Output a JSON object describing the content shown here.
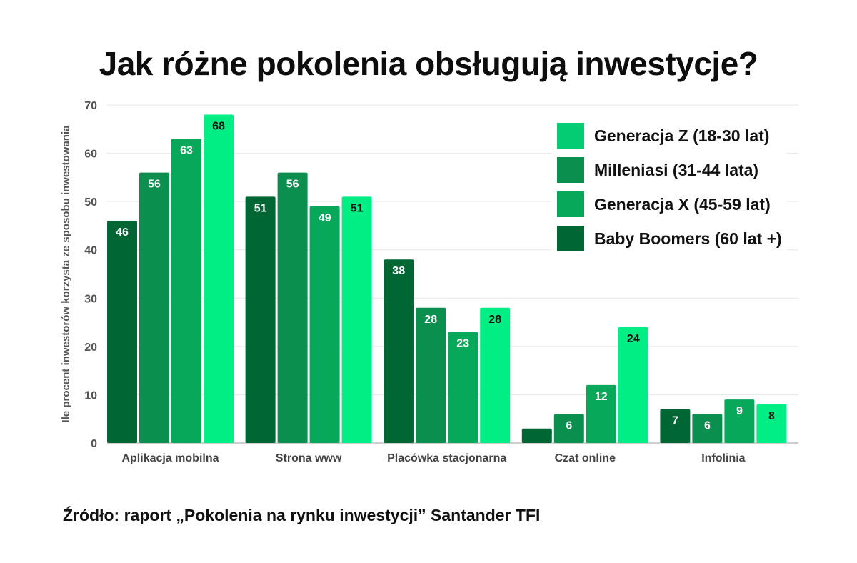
{
  "title": "Jak różne pokolenia obsługują inwestycje?",
  "source": "Źródło: raport „Pokolenia na rynku inwestycji” Santander TFI",
  "chart_data": {
    "type": "bar",
    "ylabel": "Ile procent inwestorów korzysta ze sposobu inwestowania",
    "xlabel": "",
    "ylim": [
      0,
      70
    ],
    "yticks": [
      0,
      10,
      20,
      30,
      40,
      50,
      60,
      70
    ],
    "grid": true,
    "legend_position": "top-right",
    "categories": [
      "Aplikacja mobilna",
      "Strona www",
      "Placówka stacjonarna",
      "Czat online",
      "Infolinia"
    ],
    "series": [
      {
        "name": "Baby Boomers (60 lat +)",
        "color": "#006633",
        "label_color": "#ffffff",
        "values": [
          46,
          51,
          38,
          3,
          7
        ]
      },
      {
        "name": "Milleniasi (31-44 lata)",
        "color": "#0a8f4f",
        "label_color": "#ffffff",
        "values": [
          56,
          56,
          28,
          6,
          6
        ]
      },
      {
        "name": "Generacja X (45-59 lat)",
        "color": "#07a85a",
        "label_color": "#ffffff",
        "values": [
          63,
          49,
          23,
          12,
          9
        ]
      },
      {
        "name": "Generacja Z (18-30 lat)",
        "color": "#00ee84",
        "label_color": "#111111",
        "values": [
          68,
          51,
          28,
          24,
          8
        ]
      }
    ],
    "legend_order": [
      3,
      1,
      2,
      0
    ],
    "legend_colors": [
      "#04cc73",
      "#0a8f4f",
      "#07a85a",
      "#006633"
    ]
  }
}
